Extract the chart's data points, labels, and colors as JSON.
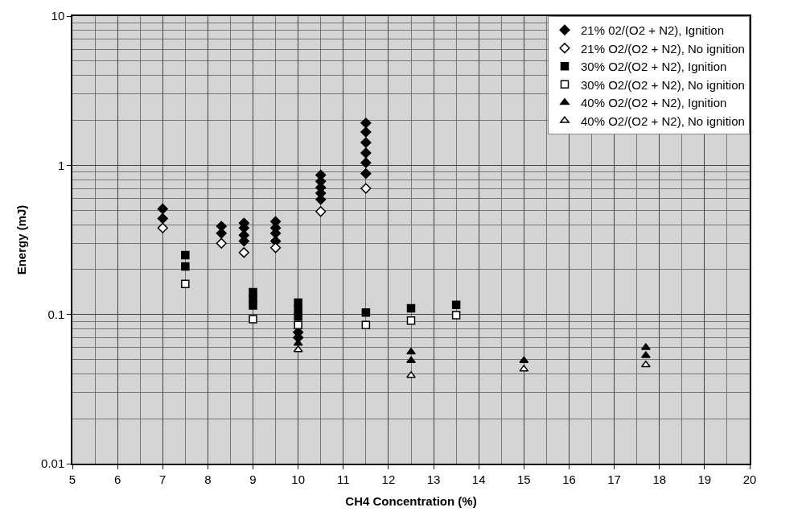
{
  "chart_data": {
    "type": "scatter",
    "xlabel": "CH4 Concentration (%)",
    "ylabel": "Energy (mJ)",
    "log": "y",
    "grid": true,
    "legend": "top right",
    "xlim": [
      5,
      20
    ],
    "xticks": [
      5,
      6,
      7,
      8,
      9,
      10,
      11,
      12,
      13,
      14,
      15,
      16,
      17,
      18,
      19,
      20
    ],
    "ylim": [
      0.01,
      10
    ],
    "yticks": [
      0.01,
      0.1,
      1,
      10
    ],
    "series": [
      {
        "name": "21% 02/(O2 + N2), Ignition",
        "color": "#000000",
        "marker": "diamond",
        "x": [
          7,
          7,
          8.3,
          8.3,
          8.8,
          8.8,
          8.8,
          8.8,
          9.5,
          9.5,
          9.5,
          9.5,
          10,
          10,
          10.5,
          10.5,
          10.5,
          10.5,
          10.5,
          11.5,
          11.5,
          11.5,
          11.5,
          11.5,
          11.5
        ],
        "values": [
          0.51,
          0.44,
          0.39,
          0.35,
          0.41,
          0.38,
          0.34,
          0.31,
          0.42,
          0.38,
          0.35,
          0.31,
          0.076,
          0.07,
          0.86,
          0.78,
          0.71,
          0.65,
          0.59,
          1.92,
          1.67,
          1.42,
          1.21,
          1.04,
          0.88
        ]
      },
      {
        "name": "21% O2/(O2 + N2), No ignition",
        "color": "#ffffff",
        "marker": "diamond",
        "x": [
          7,
          8.3,
          8.8,
          9.5,
          10.5,
          11.5
        ],
        "values": [
          0.38,
          0.3,
          0.26,
          0.28,
          0.49,
          0.7
        ]
      },
      {
        "name": "30% O2/(O2 + N2), Ignition",
        "color": "#000000",
        "marker": "square",
        "x": [
          7.5,
          7.5,
          9,
          9,
          9,
          10,
          10,
          10,
          11.5,
          12.5,
          13.5
        ],
        "values": [
          0.25,
          0.21,
          0.141,
          0.127,
          0.115,
          0.12,
          0.108,
          0.097,
          0.103,
          0.11,
          0.116
        ]
      },
      {
        "name": "30% O2/(O2 + N2), No ignition",
        "color": "#ffffff",
        "marker": "square",
        "x": [
          7.5,
          9,
          10,
          11.5,
          12.5,
          13.5
        ],
        "values": [
          0.16,
          0.093,
          0.085,
          0.085,
          0.091,
          0.099
        ]
      },
      {
        "name": "40% O2/(O2 + N2), Ignition",
        "color": "#000000",
        "marker": "triangle",
        "x": [
          10,
          12.5,
          12.5,
          15,
          17.7,
          17.7
        ],
        "values": [
          0.064,
          0.056,
          0.049,
          0.049,
          0.06,
          0.053
        ]
      },
      {
        "name": "40% O2/(O2 + N2), No ignition",
        "color": "#ffffff",
        "marker": "triangle",
        "x": [
          10,
          12.5,
          15,
          17.7
        ],
        "values": [
          0.058,
          0.039,
          0.043,
          0.046
        ]
      }
    ]
  }
}
